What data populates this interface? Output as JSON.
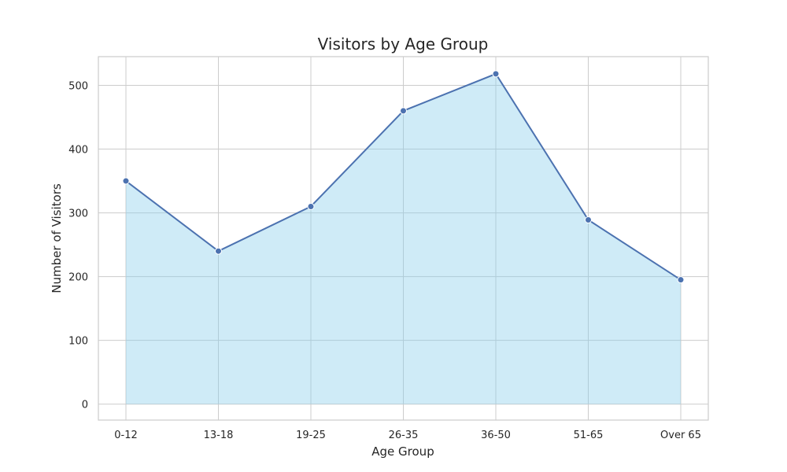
{
  "chart_data": {
    "type": "area",
    "title": "Visitors by Age Group",
    "xlabel": "Age Group",
    "ylabel": "Number of Visitors",
    "categories": [
      "0-12",
      "13-18",
      "19-25",
      "26-35",
      "36-50",
      "51-65",
      "Over 65"
    ],
    "values": [
      350,
      240,
      310,
      460,
      518,
      289,
      195
    ],
    "ylim": [
      -25,
      545
    ],
    "yticks": [
      0,
      100,
      200,
      300,
      400,
      500
    ],
    "grid": true,
    "colors": {
      "line": "#4c72b0",
      "fill": "#87ceeb",
      "marker": "#4c72b0",
      "marker_edge": "#ffffff"
    }
  }
}
